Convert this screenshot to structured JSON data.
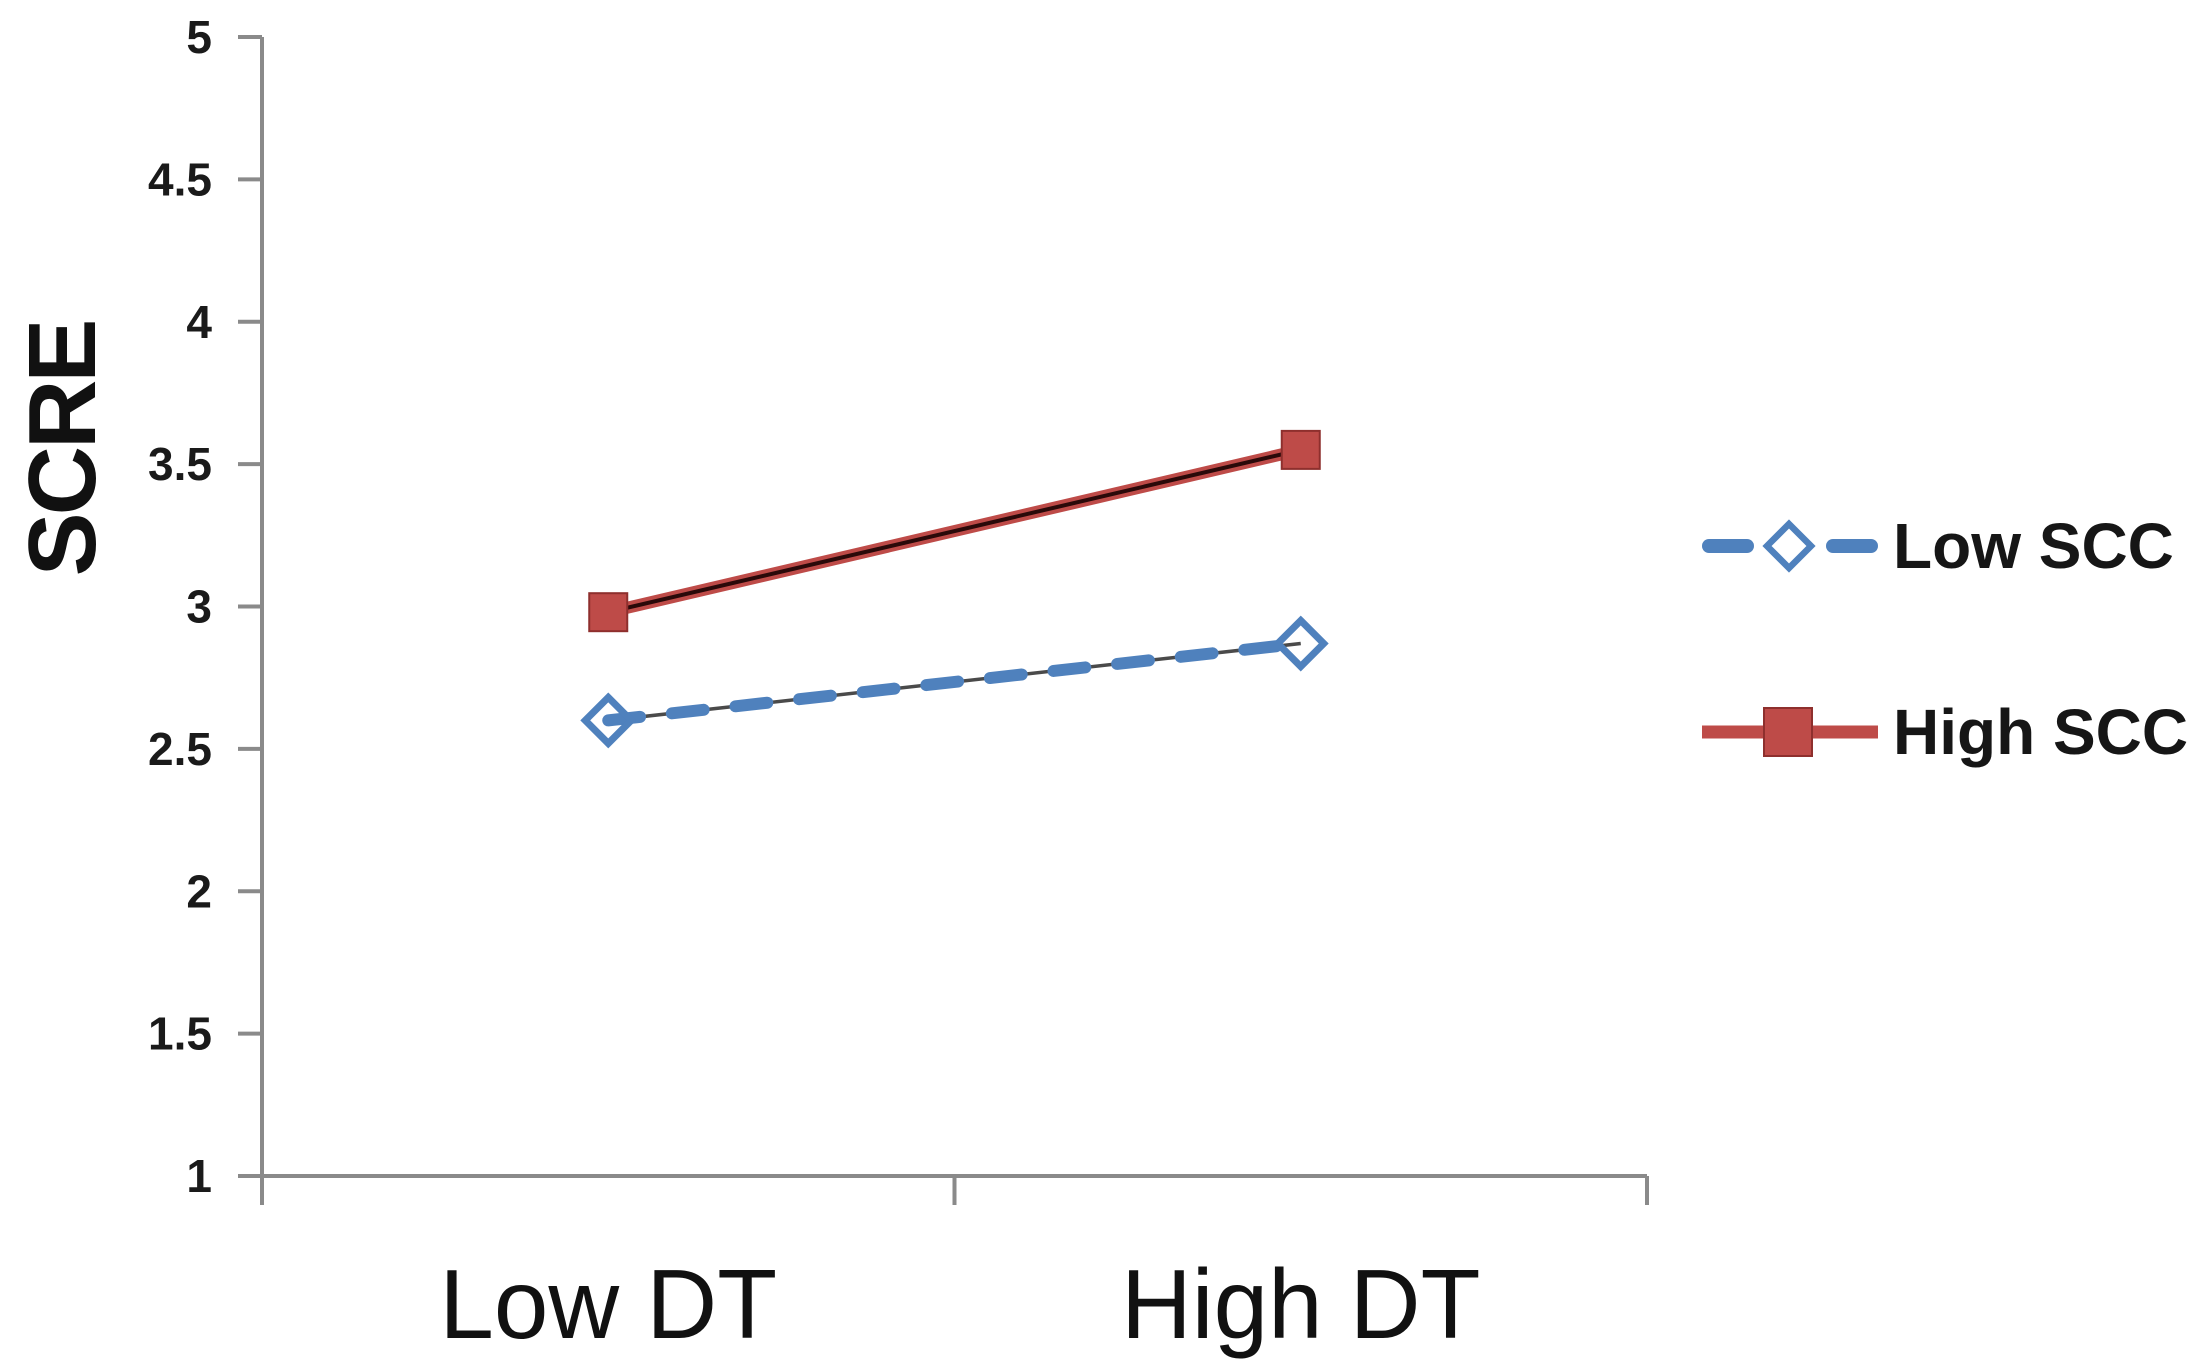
{
  "chart_data": {
    "type": "line",
    "title": "",
    "xlabel": "",
    "ylabel": "SCRE",
    "categories": [
      "Low DT",
      "High DT"
    ],
    "series": [
      {
        "name": "Low SCC",
        "values": [
          2.6,
          2.87
        ],
        "color": "#4F81BD",
        "core_line_color": "#4a4a4a",
        "line_style": "dashed",
        "marker": "diamond-open"
      },
      {
        "name": "High SCC",
        "values": [
          2.98,
          3.55
        ],
        "color": "#BE4B48",
        "core_line_color": "#2a0909",
        "line_style": "solid",
        "marker": "square-filled"
      }
    ],
    "ylim": [
      1,
      5
    ],
    "yticks": [
      1,
      1.5,
      2,
      2.5,
      3,
      3.5,
      4,
      4.5,
      5
    ],
    "grid": false,
    "legend_position": "right",
    "axis_color": "#8a8a8a",
    "tick_label_color": "#1a1a1a",
    "category_label_color": "#111111"
  }
}
